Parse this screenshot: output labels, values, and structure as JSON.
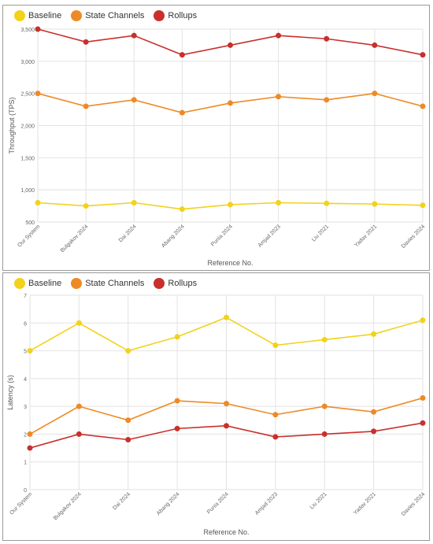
{
  "chart_data": [
    {
      "type": "line",
      "title": "",
      "xlabel": "Reference No.",
      "ylabel": "Throughput (TPS)",
      "categories": [
        "Our System",
        "Bulgakov 2024",
        "Dai 2024",
        "Abang 2024",
        "Punia 2024",
        "Amjad 2023",
        "Liu 2021",
        "Yadav 2021",
        "Davies 2024"
      ],
      "ylim": [
        500,
        3500
      ],
      "yticks": [
        500,
        1000,
        1500,
        2000,
        2500,
        3000,
        3500
      ],
      "ytick_labels": [
        "500",
        "1,000",
        "1,500",
        "2,000",
        "2,500",
        "3,000",
        "3,500"
      ],
      "grid": true,
      "legend": "top-left",
      "series": [
        {
          "name": "Baseline",
          "color": "#f2d21b",
          "values": [
            800,
            750,
            800,
            700,
            770,
            800,
            790,
            780,
            760
          ]
        },
        {
          "name": "State Channels",
          "color": "#ee8a25",
          "values": [
            2500,
            2300,
            2400,
            2200,
            2350,
            2450,
            2400,
            2500,
            2300
          ]
        },
        {
          "name": "Rollups",
          "color": "#c9302c",
          "values": [
            3500,
            3300,
            3400,
            3100,
            3250,
            3400,
            3350,
            3250,
            3100
          ]
        }
      ]
    },
    {
      "type": "line",
      "title": "",
      "xlabel": "Reference No.",
      "ylabel": "Latency (s)",
      "categories": [
        "Our System",
        "Bulgakov 2024",
        "Dai 2024",
        "Abang 2024",
        "Punia 2024",
        "Amjad 2023",
        "Liu 2021",
        "Yadav 2021",
        "Davies 2024"
      ],
      "ylim": [
        0,
        7
      ],
      "yticks": [
        0,
        1,
        2,
        3,
        4,
        5,
        6,
        7
      ],
      "ytick_labels": [
        "0",
        "1",
        "2",
        "3",
        "4",
        "5",
        "6",
        "7"
      ],
      "grid": true,
      "legend": "top-left",
      "series": [
        {
          "name": "Baseline",
          "color": "#f2d21b",
          "values": [
            5.0,
            6.0,
            5.0,
            5.5,
            6.2,
            5.2,
            5.4,
            5.6,
            6.1
          ]
        },
        {
          "name": "State Channels",
          "color": "#ee8a25",
          "values": [
            2.0,
            3.0,
            2.5,
            3.2,
            3.1,
            2.7,
            3.0,
            2.8,
            3.3
          ]
        },
        {
          "name": "Rollups",
          "color": "#c9302c",
          "values": [
            1.5,
            2.0,
            1.8,
            2.2,
            2.3,
            1.9,
            2.0,
            2.1,
            2.4
          ]
        }
      ]
    }
  ]
}
